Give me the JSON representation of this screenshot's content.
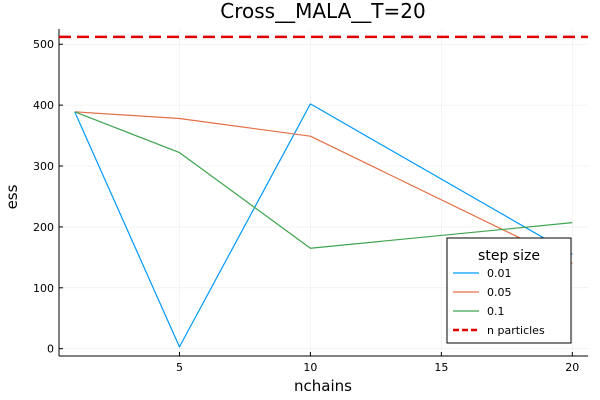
{
  "chart_data": {
    "type": "line",
    "title": "Cross__MALA__T=20",
    "xlabel": "nchains",
    "ylabel": "ess",
    "x": [
      1,
      5,
      10,
      20
    ],
    "xlim": [
      0.4,
      20.6
    ],
    "ylim": [
      -12,
      525
    ],
    "xticks": [
      5,
      10,
      15,
      20
    ],
    "yticks": [
      0,
      100,
      200,
      300,
      400,
      500
    ],
    "grid": true,
    "legend": {
      "title": "step size",
      "placement": "bottom-right"
    },
    "series": [
      {
        "name": "0.01",
        "color": "#009AFA",
        "style": "solid",
        "values": [
          389,
          3,
          402,
          155
        ]
      },
      {
        "name": "0.05",
        "color": "#E26F46",
        "style": "solid",
        "values": [
          389,
          378,
          349,
          140
        ]
      },
      {
        "name": "0.1",
        "color": "#3EA44E",
        "style": "solid",
        "values": [
          389,
          322,
          165,
          207
        ]
      },
      {
        "name": "n particles",
        "color": "#E00000",
        "style": "dashed",
        "hline": 512
      }
    ]
  }
}
